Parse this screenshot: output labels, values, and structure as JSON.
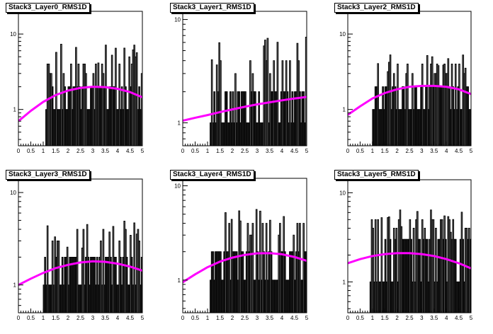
{
  "chart_data": [
    {
      "type": "bar",
      "title": "Stack3_Layer0_RMS1D",
      "log_y": true,
      "xlim": [
        0,
        5
      ],
      "ylim": [
        0.33,
        20
      ],
      "x_ticks": [
        "0",
        "0.5",
        "1",
        "1.5",
        "2",
        "2.5",
        "3",
        "3.5",
        "4",
        "4.5",
        "5"
      ],
      "y_ticks": [
        {
          "value": 1,
          "label": "1"
        },
        {
          "value": 10,
          "label": "10"
        }
      ],
      "hist": {
        "x_start": 1.1,
        "x_end": 5.0,
        "bin_width": 0.05,
        "band_low": 1,
        "band_high": 2,
        "spike_max": 8
      },
      "fit": {
        "color": "#ff00ff",
        "x": [
          0,
          0.5,
          1,
          1.5,
          2,
          2.5,
          3,
          3.5,
          4,
          4.5,
          5
        ],
        "y": [
          0.7,
          0.96,
          1.26,
          1.55,
          1.78,
          1.93,
          2.0,
          1.98,
          1.88,
          1.7,
          1.45
        ]
      }
    },
    {
      "type": "bar",
      "title": "Stack3_Layer1_RMS1D",
      "log_y": true,
      "xlim": [
        0,
        5
      ],
      "ylim": [
        0.6,
        12
      ],
      "x_ticks": [
        "0",
        "0.5",
        "1",
        "1.5",
        "2",
        "2.5",
        "3",
        "3.5",
        "4",
        "4.5",
        "5"
      ],
      "y_ticks": [
        {
          "value": 1,
          "label": "1"
        },
        {
          "value": 10,
          "label": "10"
        }
      ],
      "hist": {
        "x_start": 1.1,
        "x_end": 5.0,
        "bin_width": 0.05,
        "band_low": 1,
        "band_high": 2,
        "spike_max": 7
      },
      "fit": {
        "color": "#ff00ff",
        "x": [
          0,
          0.5,
          1,
          1.5,
          2,
          2.5,
          3,
          3.5,
          4,
          4.5,
          5
        ],
        "y": [
          1.05,
          1.12,
          1.19,
          1.27,
          1.35,
          1.43,
          1.51,
          1.58,
          1.65,
          1.72,
          1.78
        ]
      }
    },
    {
      "type": "bar",
      "title": "Stack3_Layer2_RMS1D",
      "log_y": true,
      "xlim": [
        0,
        5
      ],
      "ylim": [
        0.33,
        20
      ],
      "x_ticks": [
        "0",
        "0.5",
        "1",
        "1.5",
        "2",
        "2.5",
        "3",
        "3.5",
        "4",
        "4.5",
        "5"
      ],
      "y_ticks": [
        {
          "value": 1,
          "label": "1"
        },
        {
          "value": 10,
          "label": "10"
        }
      ],
      "hist": {
        "x_start": 1.0,
        "x_end": 5.0,
        "bin_width": 0.05,
        "band_low": 1,
        "band_high": 2,
        "spike_max": 6
      },
      "fit": {
        "color": "#ff00ff",
        "x": [
          0,
          0.5,
          1,
          1.5,
          2,
          2.5,
          3,
          3.5,
          4,
          4.5,
          5
        ],
        "y": [
          0.85,
          1.1,
          1.4,
          1.65,
          1.85,
          2.0,
          2.05,
          2.05,
          2.0,
          1.85,
          1.6
        ]
      }
    },
    {
      "type": "bar",
      "title": "Stack3_Layer3_RMS1D",
      "log_y": true,
      "xlim": [
        0,
        5
      ],
      "ylim": [
        0.5,
        14
      ],
      "x_ticks": [
        "0",
        "0.5",
        "1",
        "1.5",
        "2",
        "2.5",
        "3",
        "3.5",
        "4",
        "4.5",
        "5"
      ],
      "y_ticks": [
        {
          "value": 1,
          "label": "1"
        },
        {
          "value": 10,
          "label": "10"
        }
      ],
      "hist": {
        "x_start": 1.0,
        "x_end": 5.0,
        "bin_width": 0.05,
        "band_low": 1,
        "band_high": 2,
        "spike_max": 5
      },
      "fit": {
        "color": "#ff00ff",
        "x": [
          0,
          0.5,
          1,
          1.5,
          2,
          2.5,
          3,
          3.5,
          4,
          4.5,
          5
        ],
        "y": [
          1.0,
          1.17,
          1.35,
          1.52,
          1.65,
          1.75,
          1.8,
          1.78,
          1.7,
          1.58,
          1.43
        ]
      }
    },
    {
      "type": "bar",
      "title": "Stack3_Layer4_RMS1D",
      "log_y": true,
      "xlim": [
        0,
        5
      ],
      "ylim": [
        0.45,
        12
      ],
      "x_ticks": [
        "0",
        "0.5",
        "1",
        "1.5",
        "2",
        "2.5",
        "3",
        "3.5",
        "4",
        "4.5",
        "5"
      ],
      "y_ticks": [
        {
          "value": 1,
          "label": "1"
        },
        {
          "value": 10,
          "label": "10"
        }
      ],
      "hist": {
        "x_start": 1.1,
        "x_end": 5.0,
        "bin_width": 0.05,
        "band_low": 1,
        "band_high": 2,
        "spike_max": 6
      },
      "fit": {
        "color": "#ff00ff",
        "x": [
          0,
          0.5,
          1,
          1.5,
          2,
          2.5,
          3,
          3.5,
          4,
          4.5,
          5
        ],
        "y": [
          0.95,
          1.15,
          1.37,
          1.57,
          1.73,
          1.85,
          1.92,
          1.93,
          1.88,
          1.76,
          1.6
        ]
      }
    },
    {
      "type": "bar",
      "title": "Stack3_Layer5_RMS1D",
      "log_y": true,
      "xlim": [
        0,
        5
      ],
      "ylim": [
        0.45,
        14
      ],
      "x_ticks": [
        "0",
        "0.5",
        "1",
        "1.5",
        "2",
        "2.5",
        "3",
        "3.5",
        "4",
        "4.5",
        "5"
      ],
      "y_ticks": [
        {
          "value": 1,
          "label": "1"
        },
        {
          "value": 10,
          "label": "10"
        }
      ],
      "hist": {
        "x_start": 0.9,
        "x_end": 5.0,
        "bin_width": 0.05,
        "band_low": 1,
        "band_high": 3,
        "spike_max": 7
      },
      "fit": {
        "color": "#ff00ff",
        "x": [
          0,
          0.5,
          1,
          1.5,
          2,
          2.5,
          3,
          3.5,
          4,
          4.5,
          5
        ],
        "y": [
          1.62,
          1.8,
          1.95,
          2.05,
          2.1,
          2.1,
          2.05,
          1.95,
          1.8,
          1.62,
          1.42
        ]
      }
    }
  ]
}
